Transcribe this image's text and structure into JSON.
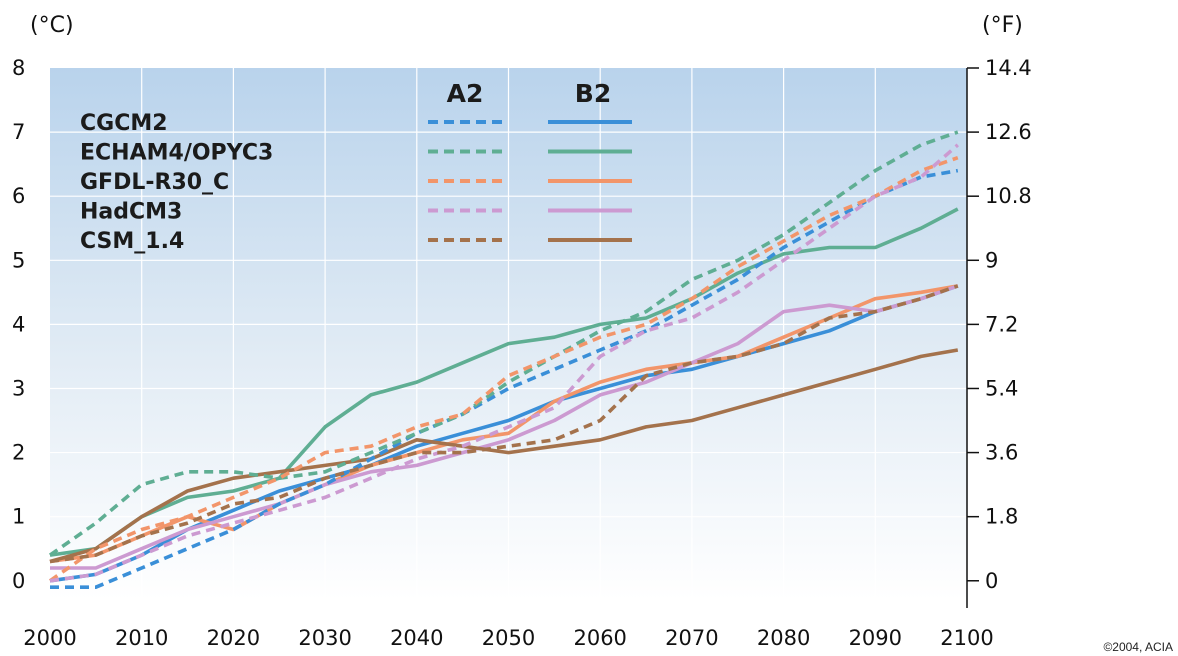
{
  "chart_data": {
    "type": "line",
    "title": "",
    "xlabel": "",
    "ylabel": "(°C)",
    "ylabel_right": "(°F)",
    "xlim": [
      2000,
      2100
    ],
    "ylim": [
      -0.3,
      8
    ],
    "x_ticks": [
      "2000",
      "2010",
      "2020",
      "2030",
      "2040",
      "2050",
      "2060",
      "2070",
      "2080",
      "2090",
      "2100"
    ],
    "y_ticks": [
      "0",
      "1",
      "2",
      "3",
      "4",
      "5",
      "6",
      "7",
      "8"
    ],
    "y_ticks_right": [
      {
        "value": 0,
        "label": "0"
      },
      {
        "value": 1,
        "label": "1.8"
      },
      {
        "value": 2,
        "label": "3.6"
      },
      {
        "value": 3,
        "label": "5.4"
      },
      {
        "value": 4,
        "label": "7.2"
      },
      {
        "value": 5,
        "label": "9"
      },
      {
        "value": 6,
        "label": "10.8"
      },
      {
        "value": 7,
        "label": "12.6"
      },
      {
        "value": 8,
        "label": "14.4"
      }
    ],
    "legend": {
      "placement": "top-left",
      "scenario_headers": [
        "A2",
        "B2"
      ],
      "a2_style": "dashed",
      "b2_style": "solid"
    },
    "grid": true,
    "x": [
      2000,
      2005,
      2010,
      2015,
      2020,
      2025,
      2030,
      2035,
      2040,
      2045,
      2050,
      2055,
      2060,
      2065,
      2070,
      2075,
      2080,
      2085,
      2090,
      2095,
      2099
    ],
    "series": [
      {
        "name": "CGCM2",
        "scenario": "A2",
        "color": "#3a8fd8",
        "values": [
          -0.1,
          -0.1,
          0.2,
          0.5,
          0.8,
          1.2,
          1.5,
          1.9,
          2.3,
          2.6,
          3.0,
          3.3,
          3.6,
          3.9,
          4.3,
          4.7,
          5.2,
          5.6,
          6.0,
          6.3,
          6.4
        ]
      },
      {
        "name": "CGCM2",
        "scenario": "B2",
        "color": "#3a8fd8",
        "values": [
          0.0,
          0.1,
          0.4,
          0.8,
          1.1,
          1.4,
          1.6,
          1.8,
          2.1,
          2.3,
          2.5,
          2.8,
          3.0,
          3.2,
          3.3,
          3.5,
          3.7,
          3.9,
          4.2,
          4.4,
          4.6
        ]
      },
      {
        "name": "ECHAM4/OPYC3",
        "scenario": "A2",
        "color": "#5fae93",
        "values": [
          0.4,
          0.9,
          1.5,
          1.7,
          1.7,
          1.6,
          1.7,
          2.0,
          2.3,
          2.6,
          3.1,
          3.5,
          3.9,
          4.2,
          4.7,
          5.0,
          5.4,
          5.9,
          6.4,
          6.8,
          7.0
        ]
      },
      {
        "name": "ECHAM4/OPYC3",
        "scenario": "B2",
        "color": "#5fae93",
        "values": [
          0.4,
          0.5,
          1.0,
          1.3,
          1.4,
          1.6,
          2.4,
          2.9,
          3.1,
          3.4,
          3.7,
          3.8,
          4.0,
          4.1,
          4.4,
          4.8,
          5.1,
          5.2,
          5.2,
          5.5,
          5.8
        ]
      },
      {
        "name": "GFDL-R30_C",
        "scenario": "A2",
        "color": "#f2956a",
        "values": [
          0.0,
          0.5,
          0.8,
          1.0,
          1.3,
          1.6,
          2.0,
          2.1,
          2.4,
          2.6,
          3.2,
          3.5,
          3.8,
          4.0,
          4.4,
          4.9,
          5.3,
          5.7,
          6.0,
          6.4,
          6.6
        ]
      },
      {
        "name": "GFDL-R30_C",
        "scenario": "B2",
        "color": "#f2956a",
        "values": [
          0.3,
          0.4,
          0.7,
          1.0,
          0.8,
          1.2,
          1.5,
          1.8,
          2.0,
          2.2,
          2.3,
          2.8,
          3.1,
          3.3,
          3.4,
          3.5,
          3.8,
          4.1,
          4.4,
          4.5,
          4.6
        ]
      },
      {
        "name": "HadCM3",
        "scenario": "A2",
        "color": "#cc9ad1",
        "values": [
          0.0,
          0.1,
          0.4,
          0.7,
          0.9,
          1.1,
          1.3,
          1.6,
          1.9,
          2.1,
          2.4,
          2.7,
          3.5,
          3.9,
          4.1,
          4.5,
          5.0,
          5.5,
          6.0,
          6.3,
          6.8
        ]
      },
      {
        "name": "HadCM3",
        "scenario": "B2",
        "color": "#cc9ad1",
        "values": [
          0.2,
          0.2,
          0.5,
          0.8,
          1.0,
          1.2,
          1.5,
          1.7,
          1.8,
          2.0,
          2.2,
          2.5,
          2.9,
          3.1,
          3.4,
          3.7,
          4.2,
          4.3,
          4.2,
          4.4,
          4.6
        ]
      },
      {
        "name": "CSM_1.4",
        "scenario": "A2",
        "color": "#a4724c",
        "values": [
          0.3,
          0.4,
          0.7,
          0.9,
          1.2,
          1.3,
          1.6,
          1.8,
          2.0,
          2.0,
          2.1,
          2.2,
          2.5,
          3.2,
          3.4,
          3.5,
          3.7,
          4.1,
          4.2,
          4.4,
          4.6
        ]
      },
      {
        "name": "CSM_1.4",
        "scenario": "B2",
        "color": "#a4724c",
        "values": [
          0.3,
          0.5,
          1.0,
          1.4,
          1.6,
          1.7,
          1.8,
          1.9,
          2.2,
          2.1,
          2.0,
          2.1,
          2.2,
          2.4,
          2.5,
          2.7,
          2.9,
          3.1,
          3.3,
          3.5,
          3.6
        ]
      }
    ]
  },
  "copyright": "©2004, ACIA"
}
